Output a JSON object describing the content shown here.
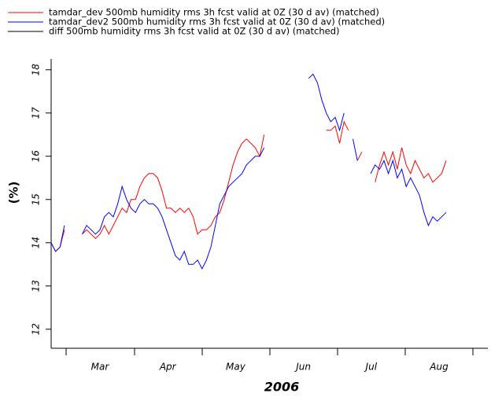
{
  "chart_data": {
    "type": "line",
    "xlabel": "2006",
    "ylabel": "(%)",
    "x_labels": [
      "Mar",
      "Apr",
      "May",
      "Jun",
      "Jul",
      "Aug"
    ],
    "ylim": [
      11.56,
      18.25
    ],
    "yticks": [
      12,
      13,
      14,
      15,
      16,
      17,
      18
    ],
    "series": [
      {
        "name": "tamdar_dev 500mb humidity rms 3h fcst valid at 0Z (30 d av) (matched)",
        "color": "#ff0000",
        "values": [
          14.0,
          13.8,
          13.9,
          14.3,
          null,
          null,
          null,
          14.2,
          14.3,
          14.2,
          14.1,
          14.2,
          14.4,
          14.2,
          14.4,
          14.6,
          14.8,
          14.7,
          15.0,
          15.0,
          15.3,
          15.5,
          15.6,
          15.6,
          15.5,
          15.2,
          14.8,
          14.8,
          14.7,
          14.8,
          14.7,
          14.8,
          14.6,
          14.2,
          14.3,
          14.3,
          14.4,
          14.6,
          14.7,
          15.0,
          15.4,
          15.8,
          16.1,
          16.3,
          16.4,
          16.3,
          16.2,
          16.0,
          16.5,
          null,
          null,
          null,
          null,
          null,
          null,
          null,
          null,
          null,
          null,
          null,
          null,
          null,
          16.6,
          16.6,
          16.7,
          16.3,
          16.8,
          16.6,
          null,
          15.9,
          16.1,
          null,
          null,
          15.4,
          15.8,
          16.1,
          15.8,
          16.1,
          15.7,
          16.2,
          15.8,
          15.6,
          15.9,
          15.7,
          15.5,
          15.6,
          15.4,
          15.5,
          15.6,
          15.9
        ]
      },
      {
        "name": "tamdar_dev2 500mb humidity rms 3h fcst valid at 0Z (30 d av) (matched)",
        "color": "#0000ff",
        "values": [
          14.0,
          13.8,
          13.9,
          14.4,
          null,
          null,
          null,
          14.2,
          14.4,
          14.3,
          14.2,
          14.3,
          14.6,
          14.7,
          14.6,
          14.9,
          15.3,
          15.0,
          14.8,
          14.7,
          14.9,
          15.0,
          14.9,
          14.9,
          14.8,
          14.6,
          14.3,
          14.0,
          13.7,
          13.6,
          13.8,
          13.5,
          13.5,
          13.6,
          13.4,
          13.6,
          13.9,
          14.4,
          14.9,
          15.1,
          15.3,
          15.4,
          15.5,
          15.6,
          15.8,
          15.9,
          16.0,
          16.0,
          16.2,
          null,
          null,
          null,
          null,
          null,
          null,
          null,
          null,
          null,
          17.8,
          17.9,
          17.7,
          17.3,
          17.0,
          16.8,
          16.9,
          16.6,
          17.0,
          null,
          16.4,
          15.9,
          null,
          null,
          15.6,
          15.8,
          15.7,
          15.9,
          15.6,
          15.9,
          15.5,
          15.7,
          15.3,
          15.5,
          15.3,
          15.1,
          14.7,
          14.4,
          14.6,
          14.5,
          14.6,
          14.7
        ]
      },
      {
        "name": "diff 500mb humidity rms 3h fcst valid at 0Z (30 d av) (matched)",
        "color": "#000000",
        "values": [
          null,
          null,
          null,
          null,
          null,
          null,
          null,
          null,
          null,
          null,
          null,
          null,
          null,
          null,
          null,
          null,
          null,
          null,
          null,
          null,
          null,
          null,
          null,
          null,
          null,
          null,
          null,
          null,
          null,
          null,
          null,
          null,
          null,
          null,
          null,
          null,
          null,
          null,
          null,
          null,
          null,
          null,
          null,
          null,
          null,
          null,
          null,
          null,
          null,
          null,
          null,
          null,
          null,
          null,
          null,
          null,
          null,
          null,
          null,
          null,
          null,
          null,
          null,
          null,
          null,
          null,
          null,
          null,
          null,
          null,
          null,
          null,
          null,
          null,
          null,
          null,
          null,
          null,
          null,
          null,
          null,
          null,
          null,
          null,
          null,
          null,
          null,
          null,
          null,
          null
        ]
      }
    ]
  }
}
